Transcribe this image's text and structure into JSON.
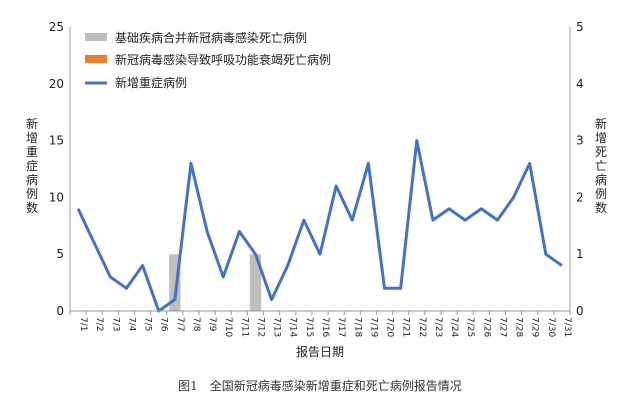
{
  "chart_data": {
    "type": "bar+line",
    "caption": "图1　全国新冠病毒感染新增重症和死亡病例报告情况",
    "xlabel": "报告日期",
    "ylabel_left": "新增重症病例数",
    "ylabel_right": "新增死亡病例数",
    "ylim_left": [
      0,
      25
    ],
    "ylim_right": [
      0,
      5
    ],
    "yticks_left": [
      "0",
      "5",
      "10",
      "15",
      "20",
      "25"
    ],
    "yticks_right": [
      "0",
      "1",
      "2",
      "3",
      "4",
      "5"
    ],
    "categories": [
      "7/1",
      "7/2",
      "7/3",
      "7/4",
      "7/5",
      "7/6",
      "7/7",
      "7/8",
      "7/9",
      "7/10",
      "7/11",
      "7/12",
      "7/13",
      "7/14",
      "7/15",
      "7/16",
      "7/17",
      "7/18",
      "7/19",
      "7/20",
      "7/21",
      "7/22",
      "7/23",
      "7/24",
      "7/25",
      "7/26",
      "7/27",
      "7/28",
      "7/29",
      "7/30",
      "7/31"
    ],
    "legend_position": "top-left",
    "series": [
      {
        "name": "基础疾病合并新冠病毒感染死亡病例",
        "type": "bar",
        "axis": "right",
        "color": "#bfbfbf",
        "values": [
          0,
          0,
          0,
          0,
          0,
          0,
          1,
          0,
          0,
          0,
          0,
          1,
          0,
          0,
          0,
          0,
          0,
          0,
          0,
          0,
          0,
          0,
          0,
          0,
          0,
          0,
          0,
          0,
          0,
          0,
          0
        ]
      },
      {
        "name": "新冠病毒感染导致呼吸功能衰竭死亡病例",
        "type": "bar",
        "axis": "right",
        "color": "#ed7d31",
        "values": [
          0,
          0,
          0,
          0,
          0,
          0,
          0,
          0,
          0,
          0,
          0,
          0,
          0,
          0,
          0,
          0,
          0,
          0,
          0,
          0,
          0,
          0,
          0,
          0,
          0,
          0,
          0,
          0,
          0,
          0,
          0
        ]
      },
      {
        "name": "新增重症病例",
        "type": "line",
        "axis": "left",
        "color": "#4472c4",
        "values": [
          9,
          6,
          3,
          2,
          4,
          0,
          1,
          13,
          7,
          3,
          7,
          5,
          1,
          4,
          8,
          5,
          11,
          8,
          13,
          2,
          2,
          15,
          8,
          9,
          8,
          9,
          8,
          10,
          13,
          5,
          4
        ]
      }
    ]
  }
}
